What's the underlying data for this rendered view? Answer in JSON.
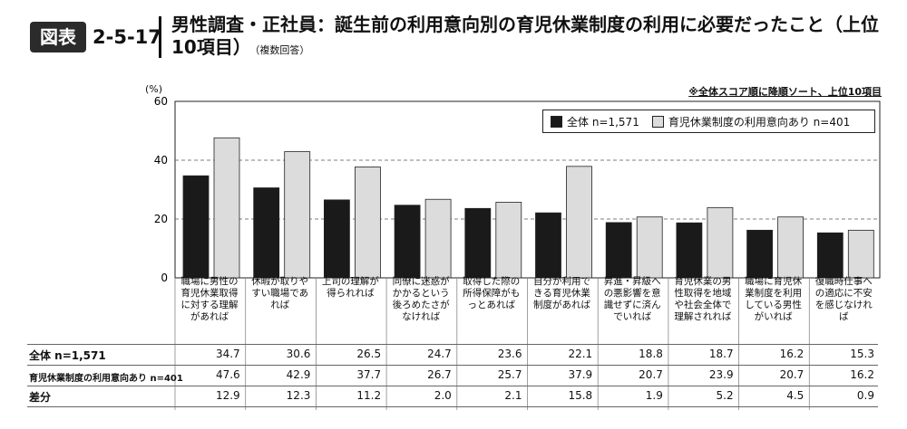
{
  "header": {
    "badge": "図表",
    "fig_number": "2-5-17",
    "title_line1": "男性調査・正社員：誕生前の利用意向別の育児休業制度の利用に必要だったこと（上位",
    "title_line2": "10項目）",
    "title_note": "（複数回答）"
  },
  "chart_data": {
    "type": "bar",
    "ylabel": "(%)",
    "ylim": [
      0,
      60
    ],
    "yticks": [
      0,
      20,
      40,
      60
    ],
    "grid": true,
    "note": "※全体スコア順に降順ソート、上位10項目",
    "legend_position": "top-right",
    "categories": [
      "職場に男性の育児休業取得に対する理解があれば",
      "休暇が取りやすい職場であれば",
      "上司の理解が得られれば",
      "同僚に迷惑がかかるという後ろめたさがなければ",
      "取得した際の所得保障がもっとあれば",
      "自分が利用できる育児休業制度があれば",
      "昇進・昇級への悪影響を意識せずに済んでいれば",
      "育児休業の男性取得を地域や社会全体で理解されれば",
      "職場に育児休業制度を利用している男性がいれば",
      "復職時仕事への適応に不安を感じなければ"
    ],
    "series": [
      {
        "name": "全体 n=1,571",
        "color": "#1a1a1a",
        "values": [
          34.7,
          30.6,
          26.5,
          24.7,
          23.6,
          22.1,
          18.8,
          18.7,
          16.2,
          15.3
        ]
      },
      {
        "name": "育児休業制度の利用意向あり n=401",
        "color": "#dcdcdc",
        "values": [
          47.6,
          42.9,
          37.7,
          26.7,
          25.7,
          37.9,
          20.7,
          23.9,
          20.7,
          16.2
        ]
      }
    ],
    "table": {
      "row_labels": [
        "全体 n=1,571",
        "育児休業制度の利用意向あり n=401",
        "差分"
      ],
      "rows": [
        [
          "34.7",
          "30.6",
          "26.5",
          "24.7",
          "23.6",
          "22.1",
          "18.8",
          "18.7",
          "16.2",
          "15.3"
        ],
        [
          "47.6",
          "42.9",
          "37.7",
          "26.7",
          "25.7",
          "37.9",
          "20.7",
          "23.9",
          "20.7",
          "16.2"
        ],
        [
          "12.9",
          "12.3",
          "11.2",
          "2.0",
          "2.1",
          "15.8",
          "1.9",
          "5.2",
          "4.5",
          "0.9"
        ]
      ]
    }
  }
}
